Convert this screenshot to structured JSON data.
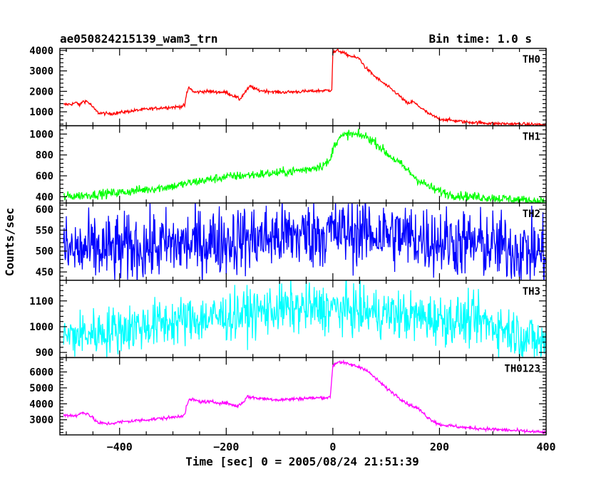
{
  "chart_data": {
    "type": "line",
    "title_left": "ae050824215139_wam3_trn",
    "title_right": "Bin time: 1.0 s",
    "xlabel": "Time [sec] 0 = 2005/08/24 21:51:39",
    "ylabel": "Counts/sec",
    "xlim": [
      -512,
      400
    ],
    "xticks": [
      -400,
      -200,
      0,
      200,
      400
    ],
    "x_minor_step": 50,
    "panels": [
      {
        "name": "TH0",
        "color": "#ff0000",
        "ylim": [
          320,
          4100
        ],
        "yticks": [
          1000,
          2000,
          3000,
          4000
        ],
        "y_minor_step": 200,
        "noise": 40,
        "points": [
          [
            -505,
            1350
          ],
          [
            -490,
            1380
          ],
          [
            -480,
            1450
          ],
          [
            -475,
            1300
          ],
          [
            -470,
            1500
          ],
          [
            -462,
            1520
          ],
          [
            -455,
            1380
          ],
          [
            -448,
            1150
          ],
          [
            -440,
            950
          ],
          [
            -420,
            900
          ],
          [
            -400,
            960
          ],
          [
            -360,
            1100
          ],
          [
            -320,
            1200
          ],
          [
            -290,
            1240
          ],
          [
            -278,
            1300
          ],
          [
            -274,
            1900
          ],
          [
            -270,
            2200
          ],
          [
            -260,
            1950
          ],
          [
            -240,
            2000
          ],
          [
            -200,
            1950
          ],
          [
            -180,
            1700
          ],
          [
            -175,
            1600
          ],
          [
            -165,
            1950
          ],
          [
            -155,
            2250
          ],
          [
            -140,
            2050
          ],
          [
            -100,
            1950
          ],
          [
            -50,
            2000
          ],
          [
            -5,
            2050
          ],
          [
            -2,
            2100
          ],
          [
            0,
            3900
          ],
          [
            10,
            4000
          ],
          [
            30,
            3750
          ],
          [
            50,
            3600
          ],
          [
            60,
            3200
          ],
          [
            80,
            2700
          ],
          [
            100,
            2300
          ],
          [
            120,
            1900
          ],
          [
            140,
            1400
          ],
          [
            150,
            1500
          ],
          [
            160,
            1300
          ],
          [
            180,
            900
          ],
          [
            200,
            650
          ],
          [
            250,
            500
          ],
          [
            300,
            430
          ],
          [
            400,
            370
          ]
        ]
      },
      {
        "name": "TH1",
        "color": "#00ff00",
        "ylim": [
          340,
          1080
        ],
        "yticks": [
          400,
          600,
          800,
          1000
        ],
        "y_minor_step": 40,
        "noise": 22,
        "points": [
          [
            -505,
            400
          ],
          [
            -450,
            420
          ],
          [
            -400,
            440
          ],
          [
            -350,
            470
          ],
          [
            -300,
            500
          ],
          [
            -250,
            550
          ],
          [
            -200,
            590
          ],
          [
            -150,
            610
          ],
          [
            -100,
            630
          ],
          [
            -50,
            660
          ],
          [
            -20,
            700
          ],
          [
            -5,
            740
          ],
          [
            0,
            860
          ],
          [
            10,
            960
          ],
          [
            30,
            1000
          ],
          [
            60,
            980
          ],
          [
            80,
            920
          ],
          [
            100,
            820
          ],
          [
            130,
            700
          ],
          [
            160,
            560
          ],
          [
            190,
            470
          ],
          [
            220,
            420
          ],
          [
            260,
            400
          ],
          [
            300,
            390
          ],
          [
            350,
            370
          ],
          [
            400,
            355
          ]
        ]
      },
      {
        "name": "TH2",
        "color": "#0000ff",
        "ylim": [
          430,
          615
        ],
        "yticks": [
          450,
          500,
          550,
          600
        ],
        "y_minor_step": 10,
        "noise": 42,
        "points": [
          [
            -505,
            500
          ],
          [
            -400,
            505
          ],
          [
            -300,
            515
          ],
          [
            -200,
            525
          ],
          [
            -100,
            535
          ],
          [
            0,
            545
          ],
          [
            50,
            545
          ],
          [
            100,
            540
          ],
          [
            200,
            525
          ],
          [
            300,
            512
          ],
          [
            400,
            495
          ]
        ]
      },
      {
        "name": "TH3",
        "color": "#00ffff",
        "ylim": [
          880,
          1180
        ],
        "yticks": [
          900,
          1000,
          1100
        ],
        "y_minor_step": 20,
        "noise": 48,
        "points": [
          [
            -505,
            960
          ],
          [
            -400,
            990
          ],
          [
            -300,
            1020
          ],
          [
            -200,
            1040
          ],
          [
            -100,
            1070
          ],
          [
            0,
            1070
          ],
          [
            100,
            1050
          ],
          [
            200,
            1030
          ],
          [
            280,
            1020
          ],
          [
            340,
            980
          ],
          [
            400,
            930
          ]
        ]
      },
      {
        "name": "TH0123",
        "color": "#ff00ff",
        "ylim": [
          2050,
          6900
        ],
        "yticks": [
          3000,
          4000,
          5000,
          6000
        ],
        "y_minor_step": 200,
        "noise": 55,
        "points": [
          [
            -505,
            3300
          ],
          [
            -480,
            3250
          ],
          [
            -470,
            3450
          ],
          [
            -460,
            3400
          ],
          [
            -450,
            3100
          ],
          [
            -440,
            2800
          ],
          [
            -420,
            2750
          ],
          [
            -400,
            2850
          ],
          [
            -350,
            3000
          ],
          [
            -300,
            3150
          ],
          [
            -278,
            3300
          ],
          [
            -274,
            3900
          ],
          [
            -268,
            4300
          ],
          [
            -250,
            4150
          ],
          [
            -200,
            4050
          ],
          [
            -180,
            3850
          ],
          [
            -170,
            4050
          ],
          [
            -160,
            4450
          ],
          [
            -140,
            4350
          ],
          [
            -100,
            4250
          ],
          [
            -50,
            4350
          ],
          [
            -5,
            4400
          ],
          [
            0,
            6400
          ],
          [
            10,
            6650
          ],
          [
            40,
            6400
          ],
          [
            60,
            6200
          ],
          [
            80,
            5600
          ],
          [
            100,
            5000
          ],
          [
            120,
            4500
          ],
          [
            140,
            4000
          ],
          [
            160,
            3700
          ],
          [
            180,
            3100
          ],
          [
            200,
            2700
          ],
          [
            250,
            2500
          ],
          [
            300,
            2400
          ],
          [
            350,
            2300
          ],
          [
            400,
            2200
          ]
        ]
      }
    ]
  }
}
